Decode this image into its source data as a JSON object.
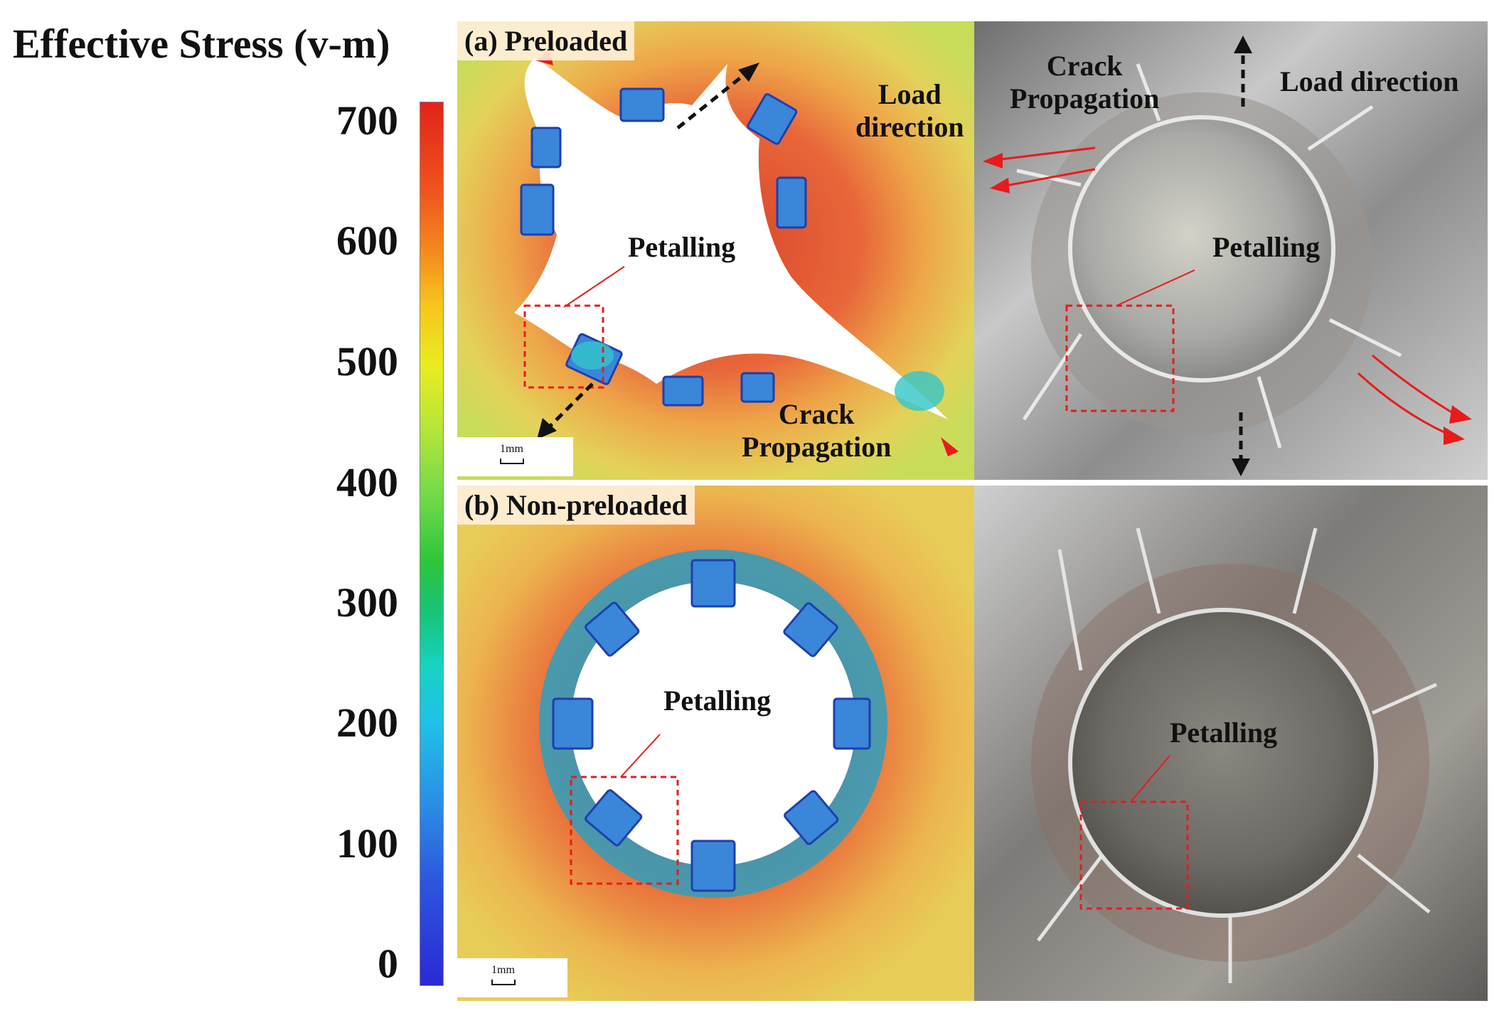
{
  "legend": {
    "title": "Effective Stress (v-m)",
    "ticks": [
      "700",
      "600",
      "500",
      "400",
      "300",
      "200",
      "100",
      "0"
    ]
  },
  "panel_a": {
    "label": "(a) Preloaded",
    "petalling": "Petalling",
    "load_direction": [
      "Load",
      "direction"
    ],
    "crack_propagation": [
      "Crack",
      "Propagation"
    ],
    "scale": "1mm"
  },
  "panel_b": {
    "label": "(b) Non-preloaded",
    "petalling": "Petalling",
    "scale": "1mm"
  },
  "photo_a": {
    "crack_propagation": [
      "Crack",
      "Propagation"
    ],
    "load_direction": "Load direction",
    "petalling": "Petalling"
  },
  "photo_b": {
    "petalling": "Petalling"
  },
  "colors": {
    "annotation_red": "#e81b1b",
    "arrow_black": "#111111"
  }
}
